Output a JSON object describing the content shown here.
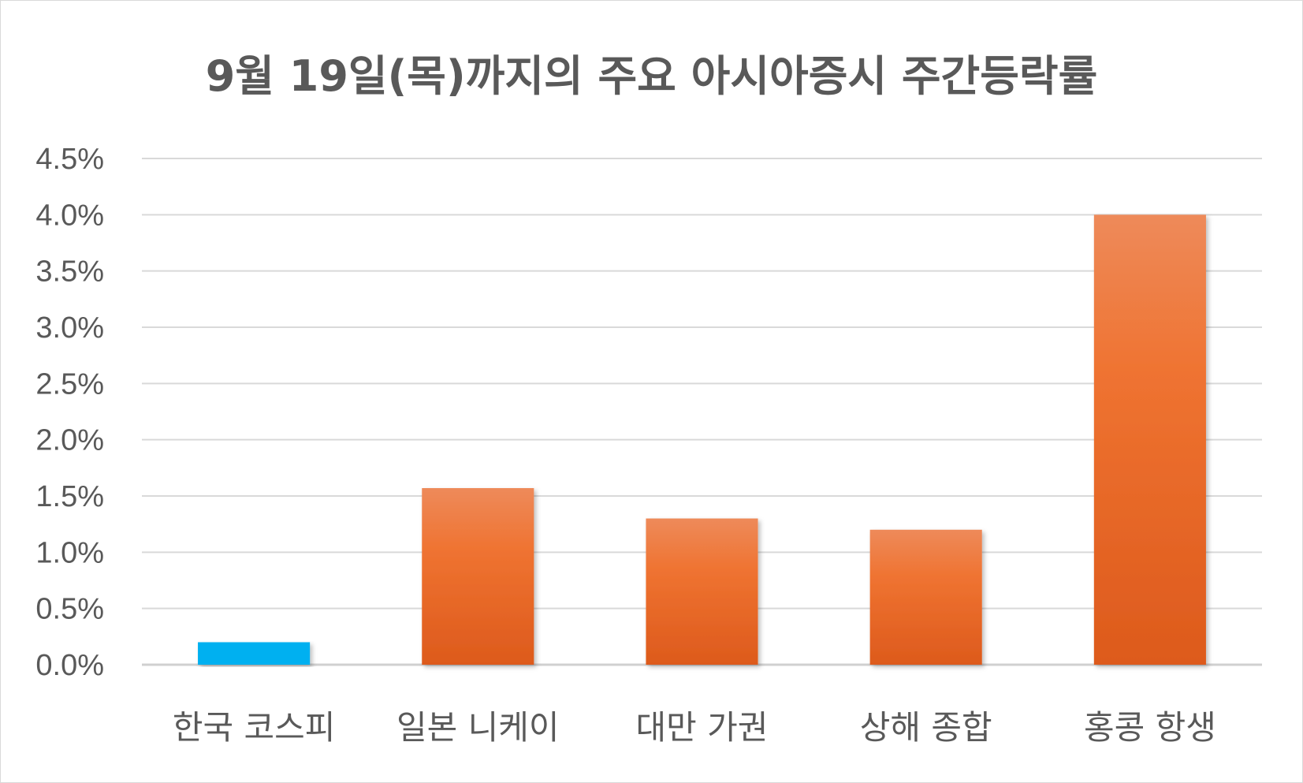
{
  "chart_data": {
    "type": "bar",
    "title": "9월 19일(목)까지의 주요 아시아증시 주간등락률",
    "xlabel": "",
    "ylabel": "",
    "categories": [
      "한국 코스피",
      "일본 니케이",
      "대만 가권",
      "상해 종합",
      "홍콩 항생"
    ],
    "values": [
      0.2,
      1.57,
      1.3,
      1.2,
      4.0
    ],
    "unit": "%",
    "ylim": [
      0,
      4.5
    ],
    "yticks": [
      0.0,
      0.5,
      1.0,
      1.5,
      2.0,
      2.5,
      3.0,
      3.5,
      4.0,
      4.5
    ],
    "ytick_labels": [
      "0.0%",
      "0.5%",
      "1.0%",
      "1.5%",
      "2.0%",
      "2.5%",
      "3.0%",
      "3.5%",
      "4.0%",
      "4.5%"
    ],
    "grid": true,
    "legend": "none",
    "bar_colors": [
      "#00b0f0",
      "#ed7d31",
      "#ed7d31",
      "#ed7d31",
      "#ed7d31"
    ],
    "gridline_color": "#d9d9d9",
    "text_color": "#595959"
  }
}
